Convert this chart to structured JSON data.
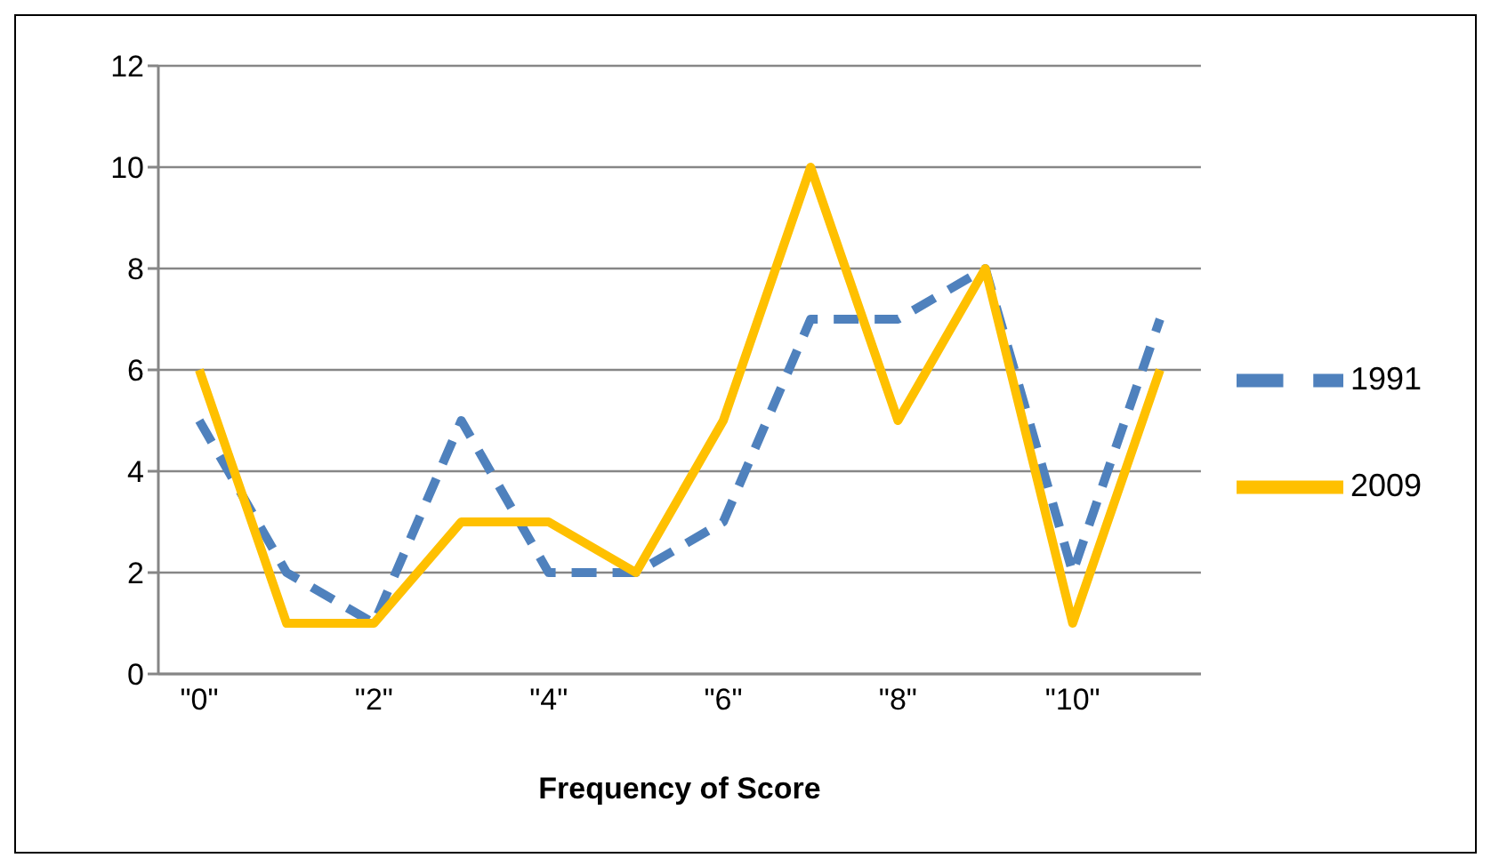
{
  "chart_data": {
    "type": "line",
    "xlabel": "Frequency of Score",
    "categories": [
      "\"0\"",
      null,
      "\"2\"",
      null,
      "\"4\"",
      null,
      "\"6\"",
      null,
      "\"8\"",
      null,
      "\"10\"",
      null
    ],
    "series": [
      {
        "name": "1991",
        "color": "#4f81bd",
        "line_style": "dashed",
        "values": [
          5,
          2,
          1,
          5,
          2,
          2,
          3,
          7,
          7,
          8,
          2,
          7
        ]
      },
      {
        "name": "2009",
        "color": "#ffc000",
        "line_style": "solid",
        "values": [
          6,
          1,
          1,
          3,
          3,
          2,
          5,
          10,
          5,
          8,
          1,
          6
        ]
      }
    ],
    "ylim": [
      0,
      12
    ],
    "yticks": [
      0,
      2,
      4,
      6,
      8,
      10,
      12
    ],
    "grid": "y",
    "legend": "right",
    "marker": "none"
  }
}
